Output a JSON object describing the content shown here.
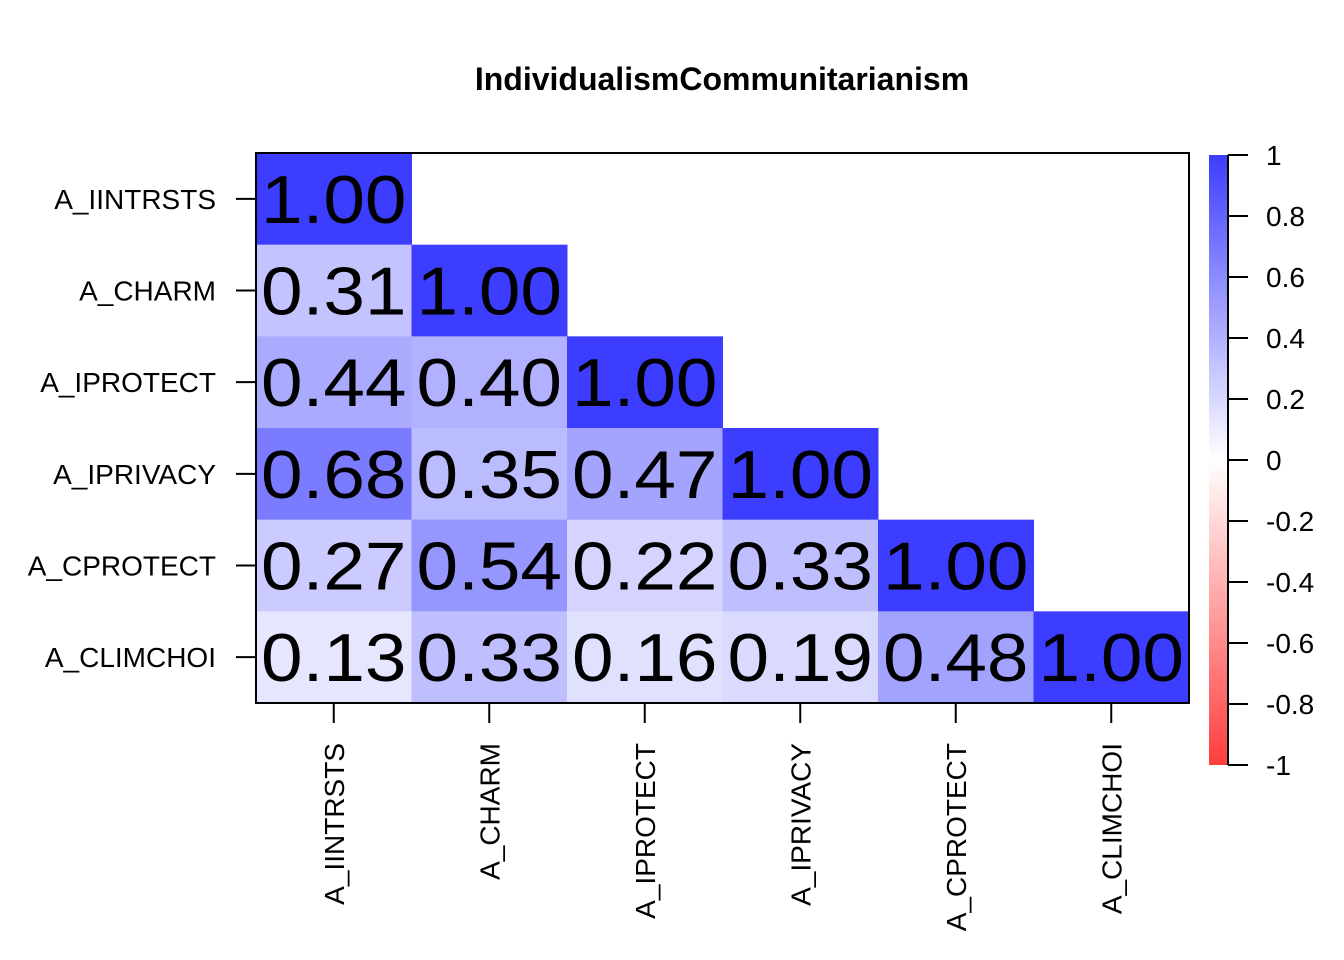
{
  "chart_data": {
    "type": "heatmap",
    "title": "IndividualismCommunitarianism",
    "row_labels": [
      "A_IINTRSTS",
      "A_CHARM",
      "A_IPROTECT",
      "A_IPRIVACY",
      "A_CPROTECT",
      "A_CLIMCHOI"
    ],
    "col_labels": [
      "A_IINTRSTS",
      "A_CHARM",
      "A_IPROTECT",
      "A_IPRIVACY",
      "A_CPROTECT",
      "A_CLIMCHOI"
    ],
    "values": [
      [
        1.0,
        null,
        null,
        null,
        null,
        null
      ],
      [
        0.31,
        1.0,
        null,
        null,
        null,
        null
      ],
      [
        0.44,
        0.4,
        1.0,
        null,
        null,
        null
      ],
      [
        0.68,
        0.35,
        0.47,
        1.0,
        null,
        null
      ],
      [
        0.27,
        0.54,
        0.22,
        0.33,
        1.0,
        null
      ],
      [
        0.13,
        0.33,
        0.16,
        0.19,
        0.48,
        1.0
      ]
    ],
    "value_labels": [
      [
        "1.00",
        "",
        "",
        "",
        "",
        ""
      ],
      [
        "0.31",
        "1.00",
        "",
        "",
        "",
        ""
      ],
      [
        "0.44",
        "0.40",
        "1.00",
        "",
        "",
        ""
      ],
      [
        "0.68",
        "0.35",
        "0.47",
        "1.00",
        "",
        ""
      ],
      [
        "0.27",
        "0.54",
        "0.22",
        "0.33",
        "1.00",
        ""
      ],
      [
        "0.13",
        "0.33",
        "0.16",
        "0.19",
        "0.48",
        "1.00"
      ]
    ],
    "colorbar": {
      "range": [
        -1,
        1
      ],
      "ticks": [
        1,
        0.8,
        0.6,
        0.4,
        0.2,
        0,
        -0.2,
        -0.4,
        -0.6,
        -0.8,
        -1
      ],
      "tick_labels": [
        "1",
        "0.8",
        "0.6",
        "0.4",
        "0.2",
        "0",
        "-0.2",
        "-0.4",
        "-0.6",
        "-0.8",
        "-1"
      ],
      "color_positive": "#3d3dff",
      "color_zero": "#ffffff",
      "color_negative": "#ff3d3d"
    }
  }
}
